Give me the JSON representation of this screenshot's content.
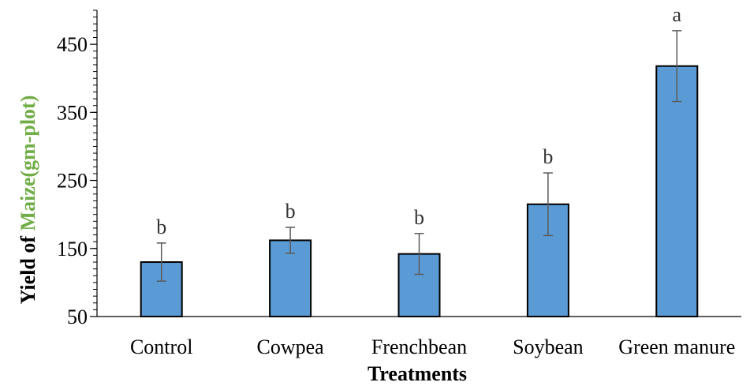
{
  "chart_data": {
    "type": "bar",
    "categories": [
      "Control",
      "Cowpea",
      "Frenchbean",
      "Soybean",
      "Green manure"
    ],
    "series": [
      {
        "values": [
          130,
          162,
          142,
          215,
          418
        ],
        "error": [
          28,
          19,
          30,
          46,
          52
        ],
        "significance": [
          "b",
          "b",
          "b",
          "b",
          "a"
        ]
      }
    ],
    "xlabel": "Treatments",
    "ylabel_parts": [
      {
        "text": "Yield of ",
        "color": "#000000"
      },
      {
        "text": "Maize(gm-plot)",
        "color": "#70ad47"
      }
    ],
    "ylim": [
      50,
      500
    ],
    "yticks": [
      50,
      150,
      250,
      350,
      450
    ],
    "minor_tick_step": 10,
    "grid": false,
    "bar_color": "#5b9bd5",
    "bar_edge_color": "#000000",
    "error_color": "#595959"
  }
}
